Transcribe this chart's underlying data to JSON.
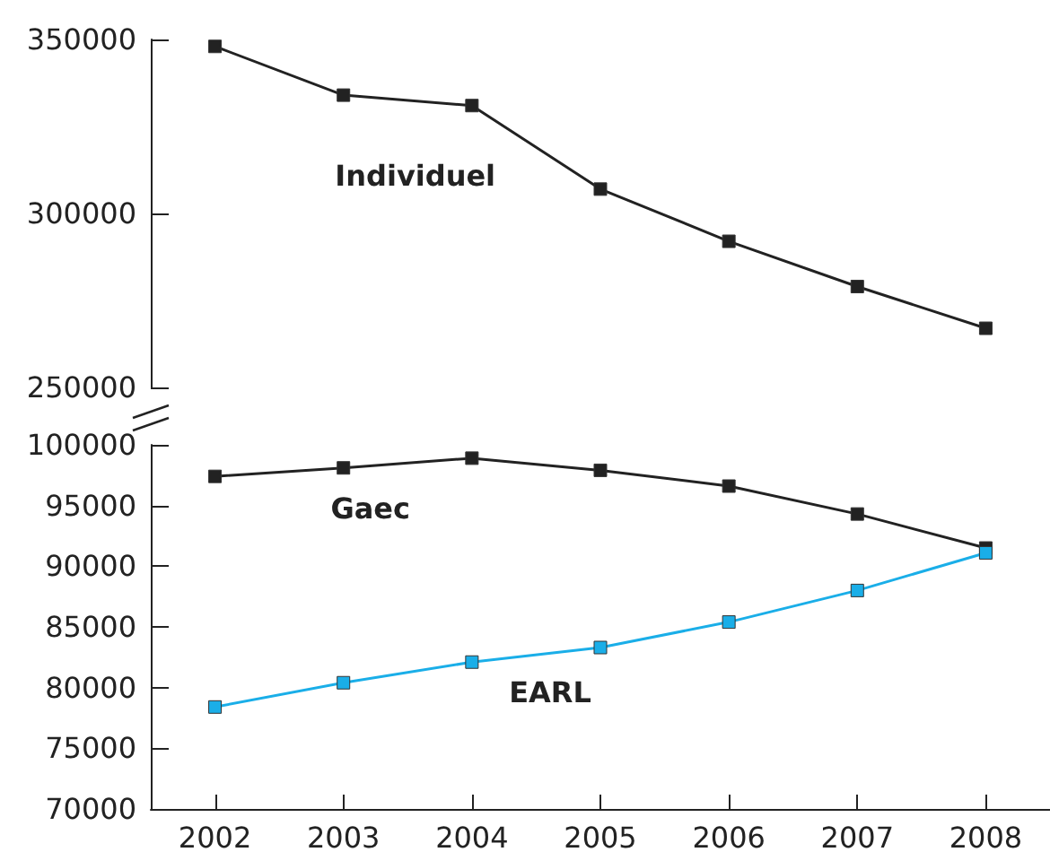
{
  "chart_data": [
    {
      "type": "line",
      "categories": [
        "2002",
        "2003",
        "2004",
        "2005",
        "2006",
        "2007",
        "2008"
      ],
      "series": [
        {
          "name": "Individuel",
          "color": "#222222",
          "values": [
            348000,
            334000,
            331000,
            307000,
            292000,
            279000,
            267000
          ]
        }
      ],
      "ylim": [
        250000,
        350000
      ],
      "yticks": [
        250000,
        300000,
        350000
      ],
      "tick_labels": "y",
      "grid": false,
      "marker": "square",
      "line_style": "solid"
    },
    {
      "type": "line",
      "categories": [
        "2002",
        "2003",
        "2004",
        "2005",
        "2006",
        "2007",
        "2008"
      ],
      "series": [
        {
          "name": "Gaec",
          "color": "#222222",
          "values": [
            97400,
            98100,
            98900,
            97900,
            96600,
            94300,
            91500
          ]
        },
        {
          "name": "EARL",
          "color": "#1aaee8",
          "values": [
            78400,
            80400,
            82100,
            83300,
            85400,
            88000,
            91100
          ]
        }
      ],
      "ylim": [
        70000,
        100000
      ],
      "yticks": [
        70000,
        75000,
        80000,
        85000,
        90000,
        95000,
        100000
      ],
      "grid": false,
      "marker": "square",
      "line_style": "solid"
    }
  ]
}
